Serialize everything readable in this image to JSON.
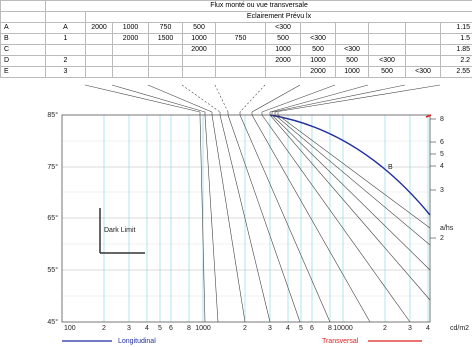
{
  "table": {
    "title": "Flux monté ou vue transversale",
    "subtitle": "Eclairement Prévu lx",
    "rows": [
      [
        "A",
        "A",
        "2000",
        "1000",
        "750",
        "500",
        null,
        "<300",
        null,
        null,
        null,
        null,
        "1.15"
      ],
      [
        "B",
        "1",
        null,
        "2000",
        "1500",
        "1000",
        "750",
        "500",
        "<300",
        null,
        null,
        null,
        "1.5"
      ],
      [
        "C",
        null,
        null,
        null,
        null,
        "2000",
        null,
        "1000",
        "500",
        "<300",
        null,
        null,
        "1.85"
      ],
      [
        "D",
        "2",
        null,
        null,
        null,
        null,
        null,
        "2000",
        "1000",
        "500",
        "<300",
        null,
        "2.2"
      ],
      [
        "E",
        "3",
        null,
        null,
        null,
        null,
        null,
        null,
        "2000",
        "1000",
        "500",
        "<300",
        "2.55"
      ]
    ]
  },
  "chart": {
    "y_labels": [
      "85°",
      "75°",
      "65°",
      "55°",
      "45°"
    ],
    "x_labels": [
      "100",
      "2",
      "3",
      "4",
      "5",
      "6",
      "8",
      "1000",
      "2",
      "3",
      "4",
      "5",
      "6",
      "8",
      "10000",
      "2",
      "3",
      "4",
      "cd/m2"
    ],
    "right_labels": [
      "8",
      "6",
      "5",
      "4",
      "3",
      "2"
    ],
    "right_title": "a/hs",
    "curve_label": "B",
    "dark_limit": "Dark Limit"
  },
  "legend": [
    "Longitudinal",
    "Transversal"
  ]
}
